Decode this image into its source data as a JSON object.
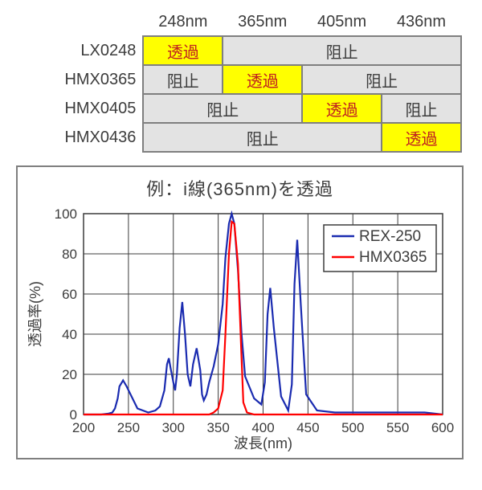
{
  "table": {
    "border_color": "#7f7f7f",
    "pass_bg": "#ffff00",
    "pass_fg": "#c02020",
    "block_bg": "#e3e3e3",
    "block_fg": "#3c3c3c",
    "col_headers": [
      "248nm",
      "365nm",
      "405nm",
      "436nm"
    ],
    "row_headers": [
      "LX0248",
      "HMX0365",
      "HMX0405",
      "HMX0436"
    ],
    "pass_label": "透過",
    "block_label": "阻止"
  },
  "chart": {
    "title": "例：i線(365nm)を透過",
    "type": "line",
    "background_color": "#ffffff",
    "grid_color": "#3c3c3c",
    "axis_color": "#3c3c3c",
    "x_label": "波長(nm)",
    "y_label": "透過率(%)",
    "label_fontsize": 18,
    "tick_fontsize": 17,
    "xlim": [
      200,
      600
    ],
    "ylim": [
      0,
      100
    ],
    "xtick_step": 50,
    "ytick_step": 20,
    "legend": {
      "position": "top-right",
      "items": [
        {
          "label": "REX-250",
          "color": "#1a2bb0"
        },
        {
          "label": "HMX0365",
          "color": "#ff0000"
        }
      ]
    },
    "series": [
      {
        "name": "REX-250",
        "color": "#1a2bb0",
        "line_width": 2.2,
        "x": [
          200,
          220,
          228,
          232,
          235,
          238,
          240,
          244,
          248,
          260,
          272,
          280,
          285,
          290,
          293,
          295,
          297,
          300,
          302,
          304,
          307,
          310,
          313,
          316,
          319,
          322,
          326,
          330,
          332,
          334,
          337,
          340,
          345,
          350,
          355,
          358,
          362,
          365,
          368,
          372,
          376,
          380,
          390,
          398,
          402,
          405,
          408,
          412,
          420,
          428,
          432,
          435,
          438,
          442,
          448,
          460,
          480,
          500,
          520,
          540,
          560,
          580,
          600
        ],
        "y": [
          0,
          0,
          0.5,
          1,
          3,
          8,
          14,
          17,
          14,
          3,
          1,
          2,
          4,
          12,
          25,
          28,
          23,
          16,
          12,
          20,
          43,
          56,
          40,
          20,
          14,
          25,
          33,
          22,
          10,
          7,
          10,
          16,
          24,
          35,
          55,
          78,
          95,
          100,
          95,
          72,
          40,
          19,
          8,
          5,
          16,
          50,
          63,
          43,
          9,
          2,
          15,
          65,
          87,
          55,
          10,
          2,
          1,
          1,
          1,
          1,
          1,
          1,
          0
        ]
      },
      {
        "name": "HMX0365",
        "color": "#ff0000",
        "line_width": 2.2,
        "x": [
          200,
          300,
          330,
          340,
          345,
          350,
          355,
          358,
          362,
          365,
          368,
          372,
          376,
          378,
          382,
          390,
          420,
          600
        ],
        "y": [
          0,
          0,
          0,
          0,
          1,
          3,
          12,
          40,
          80,
          96,
          95,
          75,
          28,
          6,
          1,
          0,
          0,
          0
        ]
      }
    ]
  }
}
